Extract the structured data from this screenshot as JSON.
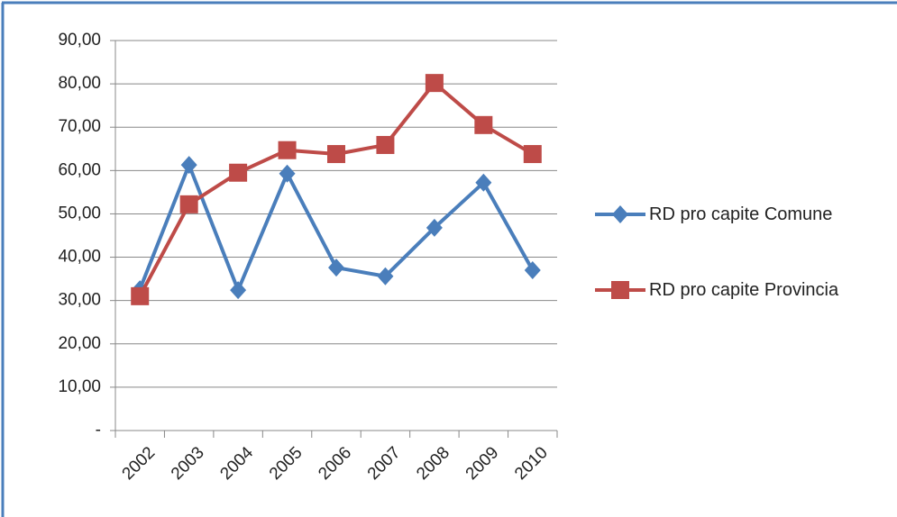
{
  "chart_data": {
    "type": "line",
    "categories": [
      "2002",
      "2003",
      "2004",
      "2005",
      "2006",
      "2007",
      "2008",
      "2009",
      "2010"
    ],
    "series": [
      {
        "name": "RD pro capite Comune",
        "color": "#4a7ebb",
        "marker": "diamond",
        "values": [
          32.6,
          61.3,
          32.4,
          59.3,
          37.6,
          35.6,
          46.8,
          57.2,
          37.0
        ]
      },
      {
        "name": "RD pro capite Provincia",
        "color": "#be4b48",
        "marker": "square",
        "values": [
          31.0,
          52.2,
          59.5,
          64.7,
          63.8,
          65.9,
          80.2,
          70.5,
          63.8
        ]
      }
    ],
    "ylim": [
      0,
      90
    ],
    "yticks": [
      {
        "value": 0,
        "label": "-"
      },
      {
        "value": 10,
        "label": "10,00"
      },
      {
        "value": 20,
        "label": "20,00"
      },
      {
        "value": 30,
        "label": "30,00"
      },
      {
        "value": 40,
        "label": "40,00"
      },
      {
        "value": 50,
        "label": "50,00"
      },
      {
        "value": 60,
        "label": "60,00"
      },
      {
        "value": 70,
        "label": "70,00"
      },
      {
        "value": 80,
        "label": "80,00"
      },
      {
        "value": 90,
        "label": "90,00"
      }
    ],
    "grid": true,
    "legend": "right"
  }
}
